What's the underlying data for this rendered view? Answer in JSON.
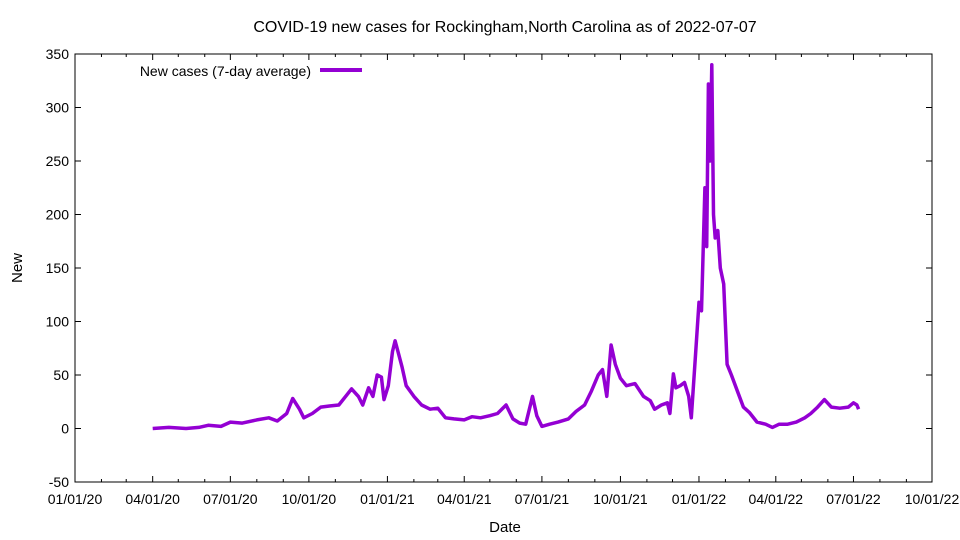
{
  "chart_data": {
    "type": "line",
    "title": "COVID-19 new cases for Rockingham,North Carolina as of 2022-07-07",
    "xlabel": "Date",
    "ylabel": "New",
    "xlim": [
      "2020-01-01",
      "2022-10-01"
    ],
    "ylim": [
      -50,
      350
    ],
    "grid": false,
    "legend_position": "top-left",
    "x_ticks": [
      {
        "date": "2020-01-01",
        "label": "01/01/20"
      },
      {
        "date": "2020-04-01",
        "label": "04/01/20"
      },
      {
        "date": "2020-07-01",
        "label": "07/01/20"
      },
      {
        "date": "2020-10-01",
        "label": "10/01/20"
      },
      {
        "date": "2021-01-01",
        "label": "01/01/21"
      },
      {
        "date": "2021-04-01",
        "label": "04/01/21"
      },
      {
        "date": "2021-07-01",
        "label": "07/01/21"
      },
      {
        "date": "2021-10-01",
        "label": "10/01/21"
      },
      {
        "date": "2022-01-01",
        "label": "01/01/22"
      },
      {
        "date": "2022-04-01",
        "label": "04/01/22"
      },
      {
        "date": "2022-07-01",
        "label": "07/01/22"
      },
      {
        "date": "2022-10-01",
        "label": "10/01/22"
      }
    ],
    "y_ticks": [
      -50,
      0,
      50,
      100,
      150,
      200,
      250,
      300,
      350
    ],
    "series": [
      {
        "name": "New cases (7-day average)",
        "color": "#9400d3",
        "points": [
          [
            "2020-04-01",
            0
          ],
          [
            "2020-04-20",
            1
          ],
          [
            "2020-05-10",
            0
          ],
          [
            "2020-05-25",
            1
          ],
          [
            "2020-06-05",
            3
          ],
          [
            "2020-06-20",
            2
          ],
          [
            "2020-07-01",
            6
          ],
          [
            "2020-07-15",
            5
          ],
          [
            "2020-08-01",
            8
          ],
          [
            "2020-08-15",
            10
          ],
          [
            "2020-08-25",
            7
          ],
          [
            "2020-09-05",
            14
          ],
          [
            "2020-09-12",
            28
          ],
          [
            "2020-09-20",
            18
          ],
          [
            "2020-09-25",
            10
          ],
          [
            "2020-10-05",
            14
          ],
          [
            "2020-10-15",
            20
          ],
          [
            "2020-10-25",
            21
          ],
          [
            "2020-11-05",
            22
          ],
          [
            "2020-11-15",
            32
          ],
          [
            "2020-11-20",
            37
          ],
          [
            "2020-11-28",
            30
          ],
          [
            "2020-12-03",
            22
          ],
          [
            "2020-12-10",
            38
          ],
          [
            "2020-12-15",
            30
          ],
          [
            "2020-12-20",
            50
          ],
          [
            "2020-12-25",
            48
          ],
          [
            "2020-12-28",
            27
          ],
          [
            "2021-01-02",
            40
          ],
          [
            "2021-01-07",
            72
          ],
          [
            "2021-01-10",
            82
          ],
          [
            "2021-01-14",
            70
          ],
          [
            "2021-01-18",
            58
          ],
          [
            "2021-01-23",
            40
          ],
          [
            "2021-02-01",
            30
          ],
          [
            "2021-02-10",
            22
          ],
          [
            "2021-02-20",
            18
          ],
          [
            "2021-03-01",
            19
          ],
          [
            "2021-03-10",
            10
          ],
          [
            "2021-03-20",
            9
          ],
          [
            "2021-04-01",
            8
          ],
          [
            "2021-04-10",
            11
          ],
          [
            "2021-04-20",
            10
          ],
          [
            "2021-05-01",
            12
          ],
          [
            "2021-05-10",
            14
          ],
          [
            "2021-05-20",
            22
          ],
          [
            "2021-05-28",
            9
          ],
          [
            "2021-06-05",
            5
          ],
          [
            "2021-06-12",
            4
          ],
          [
            "2021-06-20",
            30
          ],
          [
            "2021-06-25",
            12
          ],
          [
            "2021-07-01",
            2
          ],
          [
            "2021-07-10",
            4
          ],
          [
            "2021-07-20",
            6
          ],
          [
            "2021-08-01",
            9
          ],
          [
            "2021-08-10",
            16
          ],
          [
            "2021-08-20",
            22
          ],
          [
            "2021-08-28",
            35
          ],
          [
            "2021-09-05",
            50
          ],
          [
            "2021-09-10",
            55
          ],
          [
            "2021-09-15",
            30
          ],
          [
            "2021-09-20",
            78
          ],
          [
            "2021-09-25",
            60
          ],
          [
            "2021-10-01",
            47
          ],
          [
            "2021-10-08",
            40
          ],
          [
            "2021-10-18",
            42
          ],
          [
            "2021-10-28",
            30
          ],
          [
            "2021-11-05",
            26
          ],
          [
            "2021-11-10",
            18
          ],
          [
            "2021-11-18",
            22
          ],
          [
            "2021-11-25",
            24
          ],
          [
            "2021-11-28",
            14
          ],
          [
            "2021-12-02",
            51
          ],
          [
            "2021-12-05",
            38
          ],
          [
            "2021-12-10",
            40
          ],
          [
            "2021-12-15",
            43
          ],
          [
            "2021-12-20",
            30
          ],
          [
            "2021-12-23",
            10
          ],
          [
            "2021-12-28",
            70
          ],
          [
            "2022-01-01",
            118
          ],
          [
            "2022-01-04",
            110
          ],
          [
            "2022-01-08",
            225
          ],
          [
            "2022-01-10",
            170
          ],
          [
            "2022-01-12",
            322
          ],
          [
            "2022-01-14",
            250
          ],
          [
            "2022-01-16",
            340
          ],
          [
            "2022-01-18",
            200
          ],
          [
            "2022-01-20",
            178
          ],
          [
            "2022-01-23",
            185
          ],
          [
            "2022-01-26",
            150
          ],
          [
            "2022-01-30",
            135
          ],
          [
            "2022-02-03",
            60
          ],
          [
            "2022-02-08",
            50
          ],
          [
            "2022-02-15",
            35
          ],
          [
            "2022-02-22",
            20
          ],
          [
            "2022-03-01",
            15
          ],
          [
            "2022-03-10",
            6
          ],
          [
            "2022-03-20",
            4
          ],
          [
            "2022-03-28",
            1
          ],
          [
            "2022-04-05",
            4
          ],
          [
            "2022-04-15",
            4
          ],
          [
            "2022-04-25",
            6
          ],
          [
            "2022-05-05",
            10
          ],
          [
            "2022-05-12",
            14
          ],
          [
            "2022-05-20",
            20
          ],
          [
            "2022-05-28",
            27
          ],
          [
            "2022-06-05",
            20
          ],
          [
            "2022-06-15",
            19
          ],
          [
            "2022-06-25",
            20
          ],
          [
            "2022-07-01",
            24
          ],
          [
            "2022-07-05",
            22
          ],
          [
            "2022-07-07",
            18
          ]
        ]
      }
    ]
  }
}
